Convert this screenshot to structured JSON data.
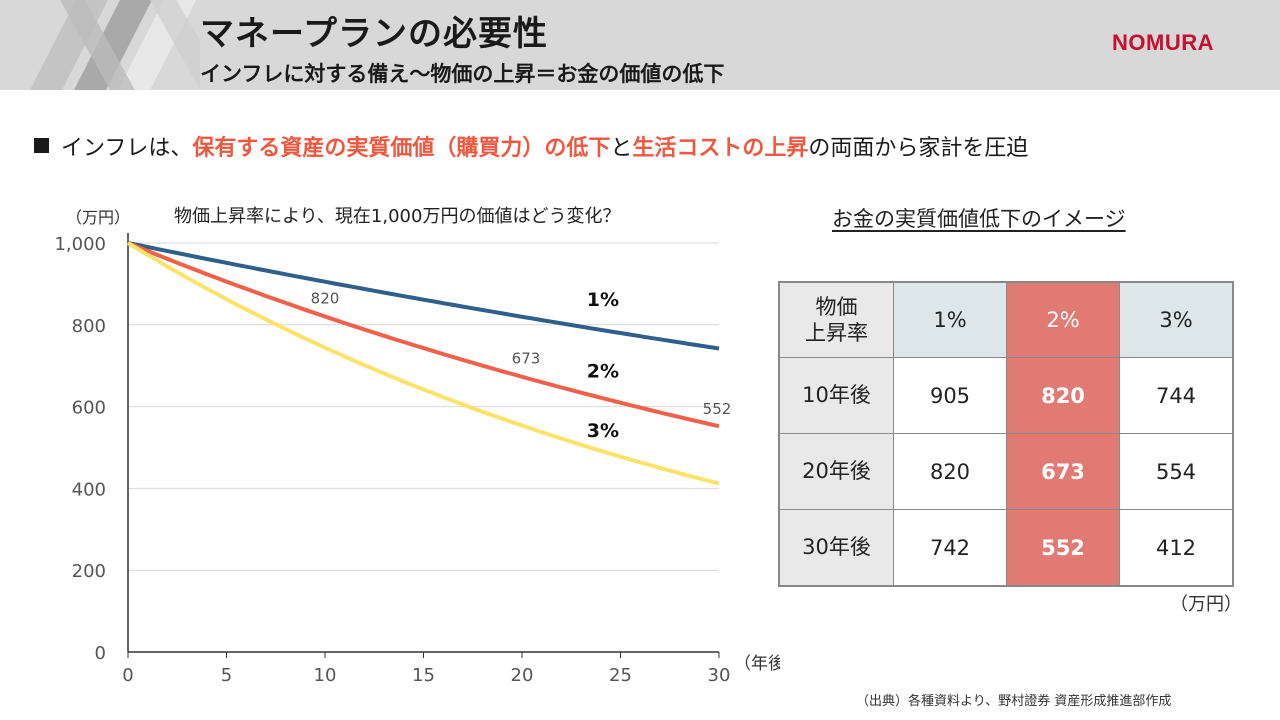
{
  "header": {
    "title": "マネープランの必要性",
    "subtitle": "インフレに対する備え～物価の上昇＝お金の価値の低下",
    "logo": "NOMURA"
  },
  "bullet": {
    "pre": "インフレは、",
    "highlight1": "保有する資産の実質価値（購買力）の低下",
    "mid": "と",
    "highlight2": "生活コストの上昇",
    "post": "の両面から家計を圧迫"
  },
  "chart_meta": {
    "unit_label": "（万円）",
    "title": "物価上昇率により、現在1,000万円の価値はどう変化？",
    "x_unit_label": "（年後）"
  },
  "chart_data": {
    "type": "line",
    "title": "物価上昇率により、現在1,000万円の価値はどう変化？",
    "xlabel": "（年後）",
    "ylabel": "（万円）",
    "xlim": [
      0,
      30
    ],
    "ylim": [
      0,
      1000
    ],
    "xticks": [
      0,
      5,
      10,
      15,
      20,
      25,
      30
    ],
    "yticks": [
      0,
      200,
      400,
      600,
      800,
      1000
    ],
    "ytick_labels": [
      "0",
      "200",
      "400",
      "600",
      "800",
      "1,000"
    ],
    "grid": "horizontal",
    "x": [
      0,
      10,
      20,
      30
    ],
    "series": [
      {
        "name": "1%",
        "values": [
          1000,
          905,
          820,
          742
        ],
        "color": "#2f5f8a"
      },
      {
        "name": "2%",
        "values": [
          1000,
          820,
          673,
          552
        ],
        "color": "#f0604a"
      },
      {
        "name": "3%",
        "values": [
          1000,
          744,
          554,
          412
        ],
        "color": "#fbe36a"
      }
    ],
    "data_labels": [
      {
        "series": "2%",
        "x": 10,
        "text": "820"
      },
      {
        "series": "2%",
        "x": 20,
        "text": "673"
      },
      {
        "series": "2%",
        "x": 30,
        "text": "552"
      }
    ]
  },
  "table": {
    "caption": "お金の実質価値低下のイメージ",
    "corner_line1": "物価",
    "corner_line2": "上昇率",
    "headers": [
      "1%",
      "2%",
      "3%"
    ],
    "rows": [
      {
        "label": "10年後",
        "values": [
          "905",
          "820",
          "744"
        ]
      },
      {
        "label": "20年後",
        "values": [
          "820",
          "673",
          "554"
        ]
      },
      {
        "label": "30年後",
        "values": [
          "742",
          "552",
          "412"
        ]
      }
    ],
    "highlight_color": "#e07a73",
    "unit": "（万円）"
  },
  "source": "（出典）各種資料より、野村證券 資産形成推進部作成",
  "colors": {
    "accent": "#f0573f",
    "brand": "#c8102e",
    "header_bg": "#d8d8d8"
  }
}
